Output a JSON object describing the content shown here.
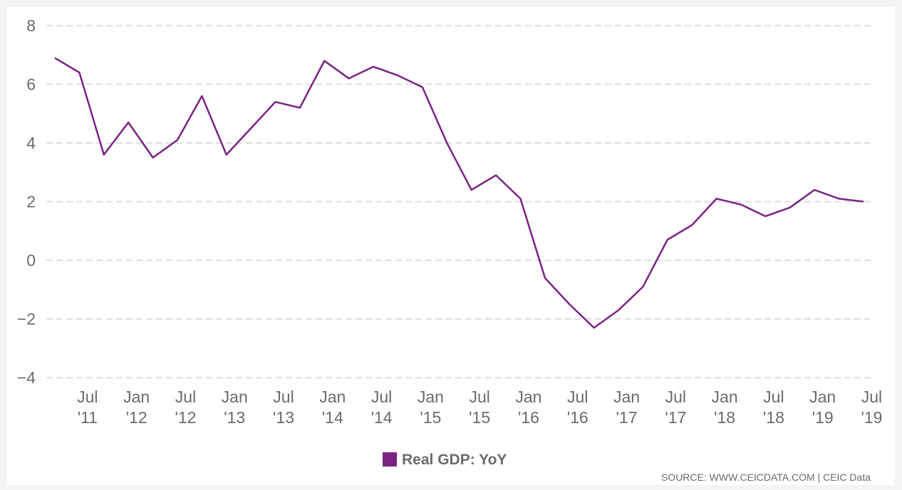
{
  "chart_data": {
    "type": "line",
    "title": "",
    "xlabel": "",
    "ylabel": "",
    "ylim": [
      -4,
      8
    ],
    "yticks": [
      8,
      6,
      4,
      2,
      0,
      -2,
      -4
    ],
    "grid": true,
    "legend_position": "bottom-center",
    "x": [
      "2011-03",
      "2011-06",
      "2011-09",
      "2011-12",
      "2012-03",
      "2012-06",
      "2012-09",
      "2012-12",
      "2013-03",
      "2013-06",
      "2013-09",
      "2013-12",
      "2014-03",
      "2014-06",
      "2014-09",
      "2014-12",
      "2015-03",
      "2015-06",
      "2015-09",
      "2015-12",
      "2016-03",
      "2016-06",
      "2016-09",
      "2016-12",
      "2017-03",
      "2017-06",
      "2017-09",
      "2017-12",
      "2018-03",
      "2018-06",
      "2018-09",
      "2018-12",
      "2019-03",
      "2019-06"
    ],
    "xtick_labels": [
      {
        "month": "Jul",
        "year": "'11",
        "date": "2011-07"
      },
      {
        "month": "Jan",
        "year": "'12",
        "date": "2012-01"
      },
      {
        "month": "Jul",
        "year": "'12",
        "date": "2012-07"
      },
      {
        "month": "Jan",
        "year": "'13",
        "date": "2013-01"
      },
      {
        "month": "Jul",
        "year": "'13",
        "date": "2013-07"
      },
      {
        "month": "Jan",
        "year": "'14",
        "date": "2014-01"
      },
      {
        "month": "Jul",
        "year": "'14",
        "date": "2014-07"
      },
      {
        "month": "Jan",
        "year": "'15",
        "date": "2015-01"
      },
      {
        "month": "Jul",
        "year": "'15",
        "date": "2015-07"
      },
      {
        "month": "Jan",
        "year": "'16",
        "date": "2016-01"
      },
      {
        "month": "Jul",
        "year": "'16",
        "date": "2016-07"
      },
      {
        "month": "Jan",
        "year": "'17",
        "date": "2017-01"
      },
      {
        "month": "Jul",
        "year": "'17",
        "date": "2017-07"
      },
      {
        "month": "Jan",
        "year": "'18",
        "date": "2018-01"
      },
      {
        "month": "Jul",
        "year": "'18",
        "date": "2018-07"
      },
      {
        "month": "Jan",
        "year": "'19",
        "date": "2019-01"
      },
      {
        "month": "Jul",
        "year": "'19",
        "date": "2019-07"
      }
    ],
    "series": [
      {
        "name": "Real GDP: YoY",
        "color": "#7b2385",
        "values": [
          6.9,
          6.4,
          3.6,
          4.7,
          3.5,
          4.1,
          5.6,
          3.6,
          4.5,
          5.4,
          5.2,
          6.8,
          6.2,
          6.6,
          6.3,
          5.9,
          4.0,
          2.4,
          2.9,
          2.1,
          -0.6,
          -1.5,
          -2.3,
          -1.7,
          -0.9,
          0.7,
          1.2,
          2.1,
          1.9,
          1.5,
          1.8,
          2.4,
          2.1,
          2.0
        ]
      }
    ]
  },
  "legend": {
    "label": "Real GDP: YoY",
    "color": "#7b2385"
  },
  "source": "SOURCE: WWW.CEICDATA.COM | CEIC Data"
}
